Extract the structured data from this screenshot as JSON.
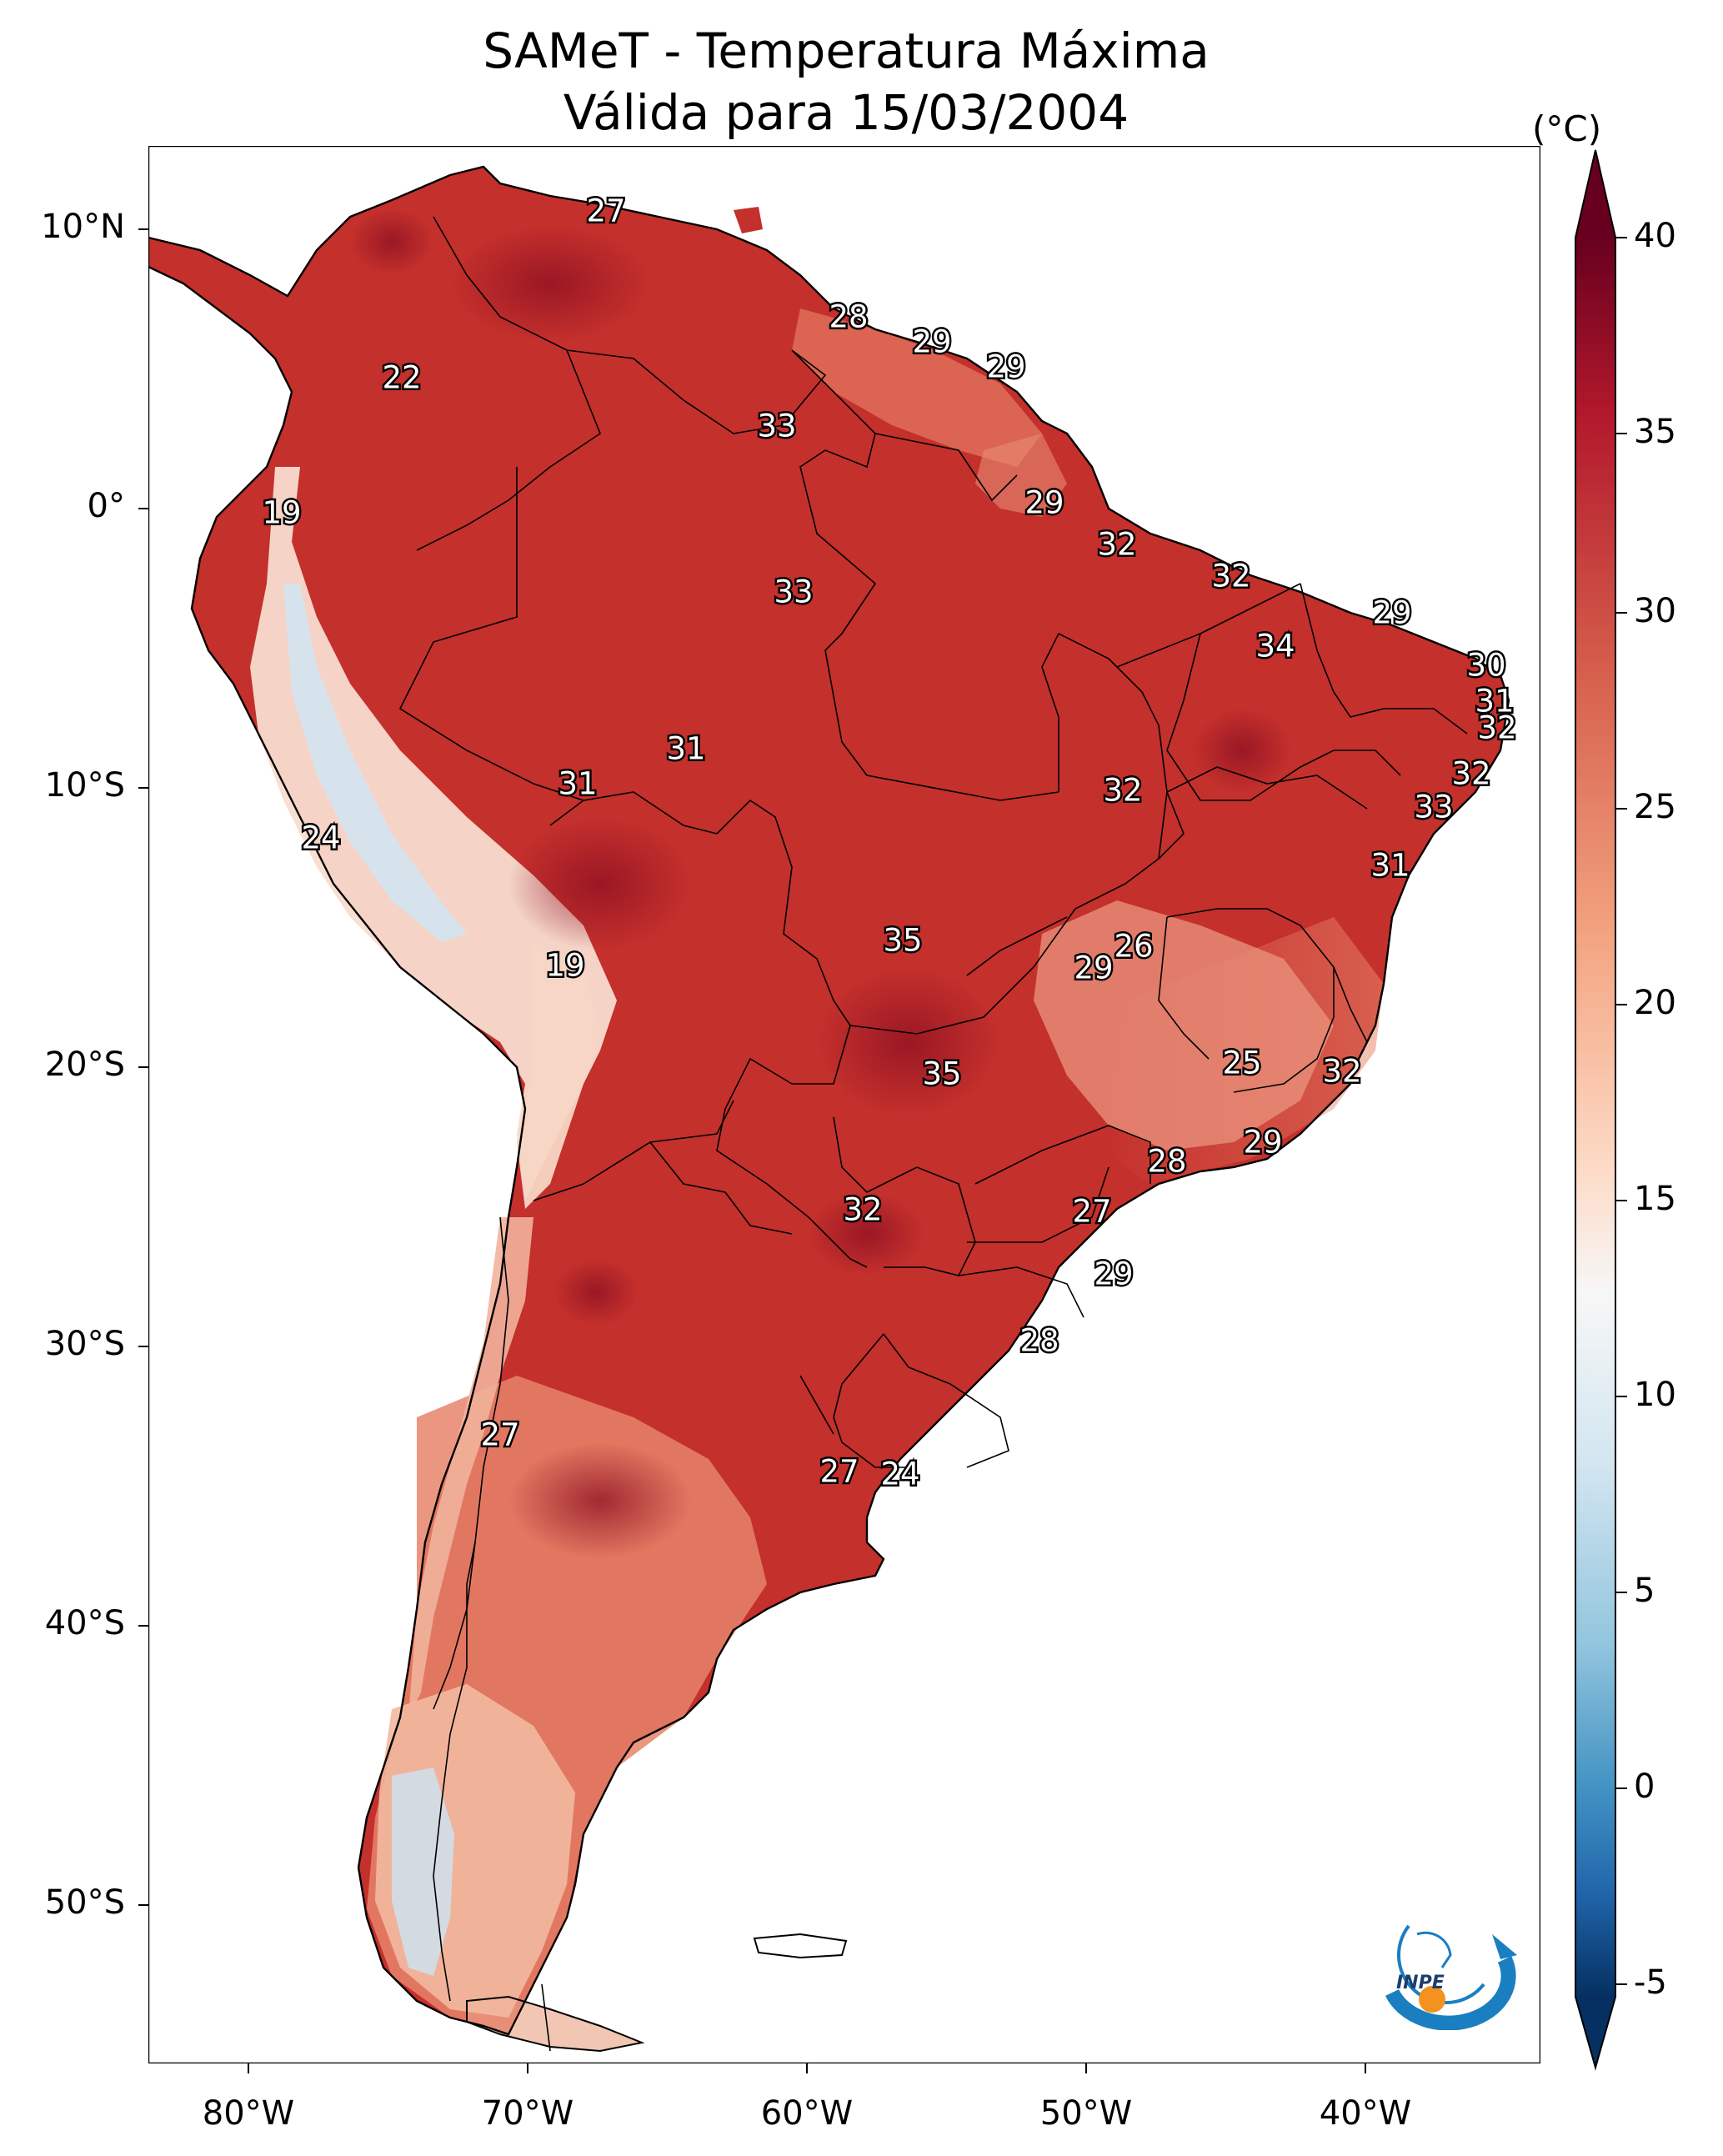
{
  "title": {
    "line1": "SAMeT - Temperatura Máxima",
    "line2": "Válida para 15/03/2004"
  },
  "colorbar": {
    "unit": "(°C)",
    "ticks": [
      "40",
      "35",
      "30",
      "25",
      "20",
      "15",
      "10",
      "5",
      "0",
      "-5"
    ],
    "colors": [
      "#67001f",
      "#b2182b",
      "#d6604d",
      "#f4a582",
      "#fddbc7",
      "#f7f7f7",
      "#d1e5f0",
      "#92c5de",
      "#4393c3",
      "#2166ac",
      "#053061"
    ]
  },
  "axes": {
    "lat_labels": [
      "10°N",
      "0°",
      "10°S",
      "20°S",
      "30°S",
      "40°S",
      "50°S"
    ],
    "lon_labels": [
      "80°W",
      "70°W",
      "60°W",
      "50°W",
      "40°W"
    ]
  },
  "map_labels": [
    "27",
    "22",
    "19",
    "28",
    "29",
    "29",
    "33",
    "33",
    "29",
    "32",
    "32",
    "34",
    "29",
    "30",
    "31",
    "32",
    "32",
    "33",
    "31",
    "31",
    "31",
    "32",
    "24",
    "19",
    "35",
    "26",
    "29",
    "35",
    "25",
    "32",
    "28",
    "29",
    "32",
    "27",
    "29",
    "28",
    "27",
    "27",
    "24"
  ],
  "logo": {
    "text": "INPE"
  },
  "colors": {
    "ocean": "#ffffff",
    "land_hot": "#c0262b",
    "land_warm": "#d65c48",
    "land_mild": "#f0a080",
    "land_cool": "#dbe8f2"
  }
}
